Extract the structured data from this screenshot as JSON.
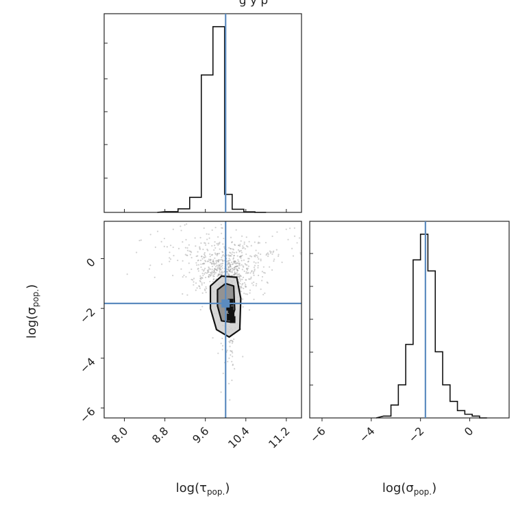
{
  "figure": {
    "title_partial": "g      y p"
  },
  "chart_data": [
    {
      "panel": "top-left",
      "type": "histogram",
      "xlabel": "",
      "ylabel": "",
      "xlim": [
        7.6,
        11.5
      ],
      "ylim": [
        0,
        1.07
      ],
      "truth": 10.0,
      "show_x_tick_labels": false,
      "show_y_tick_labels": false,
      "bin_edges": [
        8.8,
        9.06,
        9.29,
        9.52,
        9.75,
        9.98,
        10.13,
        10.36,
        10.58,
        10.8
      ],
      "heights": [
        0.004,
        0.019,
        0.081,
        0.74,
        1.0,
        0.097,
        0.017,
        0.003,
        0.0
      ]
    },
    {
      "panel": "bottom-left",
      "type": "scatter",
      "xlabel": "log(τ_pop.)",
      "ylabel": "log(σ_pop.)",
      "xlim": [
        7.6,
        11.5
      ],
      "ylim": [
        -6.4,
        1.5
      ],
      "xticks": [
        "8.0",
        "8.8",
        "9.6",
        "10.4",
        "11.2"
      ],
      "yticks": [
        "−6",
        "−4",
        "−2",
        "0"
      ],
      "truth": {
        "x": 10.0,
        "y": -1.8
      },
      "contours": [
        {
          "level": "outer",
          "points": [
            [
              9.7,
              -1.1
            ],
            [
              9.92,
              -0.7
            ],
            [
              10.22,
              -0.75
            ],
            [
              10.3,
              -1.6
            ],
            [
              10.28,
              -2.85
            ],
            [
              10.07,
              -3.15
            ],
            [
              9.82,
              -2.85
            ],
            [
              9.7,
              -2.0
            ]
          ]
        },
        {
          "level": "inner",
          "points": [
            [
              9.84,
              -1.25
            ],
            [
              10.0,
              -1.0
            ],
            [
              10.16,
              -1.1
            ],
            [
              10.18,
              -2.05
            ],
            [
              10.1,
              -2.55
            ],
            [
              9.92,
              -2.5
            ],
            [
              9.84,
              -1.9
            ]
          ]
        }
      ],
      "core_points": [
        [
          10.1,
          -2.05
        ],
        [
          10.12,
          -2.2
        ],
        [
          10.08,
          -2.35
        ],
        [
          10.14,
          -2.45
        ],
        [
          10.05,
          -1.95
        ],
        [
          10.1,
          -1.75
        ]
      ]
    },
    {
      "panel": "bottom-right",
      "type": "histogram",
      "xlabel": "log(σ_pop.)",
      "ylabel": "",
      "xlim": [
        -6.5,
        1.6
      ],
      "ylim": [
        0,
        1.07
      ],
      "truth": -1.8,
      "xticks": [
        "−6",
        "−4",
        "−2",
        "0"
      ],
      "show_y_tick_labels": false,
      "bin_edges": [
        -3.5,
        -3.2,
        -2.9,
        -2.6,
        -2.3,
        -2.0,
        -1.7,
        -1.4,
        -1.1,
        -0.8,
        -0.5,
        -0.2,
        0.1,
        0.4,
        0.7
      ],
      "heights": [
        0.01,
        0.07,
        0.18,
        0.4,
        0.86,
        1.0,
        0.8,
        0.36,
        0.18,
        0.09,
        0.04,
        0.02,
        0.01,
        0.0
      ]
    }
  ]
}
